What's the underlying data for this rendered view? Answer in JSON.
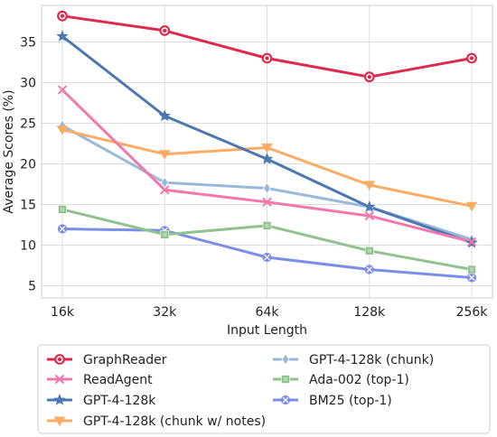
{
  "chart_data": {
    "type": "line",
    "title": "",
    "xlabel": "Input Length",
    "ylabel": "Average Scores (%)",
    "categories": [
      "16k",
      "32k",
      "64k",
      "128k",
      "256k"
    ],
    "yticks": [
      5,
      10,
      15,
      20,
      25,
      30,
      35
    ],
    "ylim": [
      3.5,
      39.5
    ],
    "grid": true,
    "legend_position": "bottom",
    "series": [
      {
        "name": "GraphReader",
        "values": [
          38.2,
          36.4,
          33.0,
          30.7,
          33.0
        ],
        "color": "#dc2a4f",
        "marker": "circle"
      },
      {
        "name": "ReadAgent",
        "values": [
          29.1,
          16.8,
          15.3,
          13.6,
          10.4
        ],
        "color": "#f178ad",
        "marker": "x"
      },
      {
        "name": "GPT-4-128k",
        "values": [
          35.7,
          25.9,
          20.6,
          14.7,
          10.3
        ],
        "color": "#4c78b0",
        "marker": "star"
      },
      {
        "name": "GPT-4-128k (chunk w/ notes)",
        "values": [
          24.2,
          21.2,
          22.0,
          17.4,
          14.8
        ],
        "color": "#f9ac62",
        "marker": "triangle-down"
      },
      {
        "name": "GPT-4-128k (chunk)",
        "values": [
          24.7,
          17.7,
          17.0,
          14.7,
          10.7
        ],
        "color": "#98b9da",
        "marker": "diamond"
      },
      {
        "name": "Ada-002 (top-1)",
        "values": [
          14.4,
          11.3,
          12.4,
          9.3,
          7.0
        ],
        "color": "#90c28e",
        "marker": "square"
      },
      {
        "name": "BM25 (top-1)",
        "values": [
          12.0,
          11.8,
          8.5,
          7.0,
          6.0
        ],
        "color": "#7c8de6",
        "marker": "x-circle"
      }
    ]
  }
}
